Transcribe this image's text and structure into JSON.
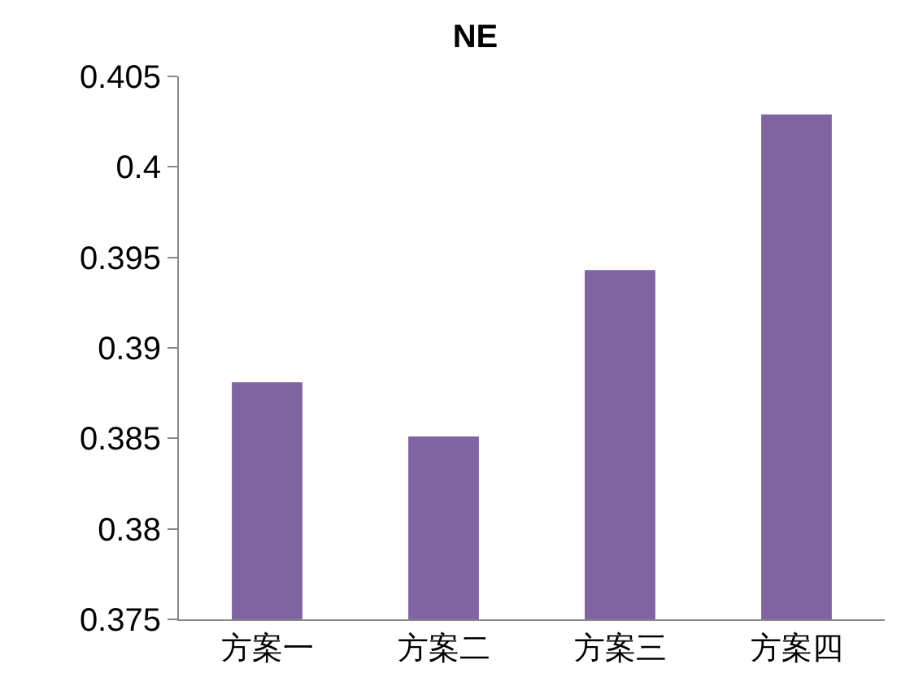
{
  "chart_data": {
    "type": "bar",
    "title": "NE",
    "categories": [
      "方案一",
      "方案二",
      "方案三",
      "方案四"
    ],
    "values": [
      0.3881,
      0.3851,
      0.3943,
      0.4029
    ],
    "color": "#8064a2",
    "ylim": [
      0.375,
      0.405
    ],
    "yticks": [
      0.375,
      0.38,
      0.385,
      0.39,
      0.395,
      0.4,
      0.405
    ],
    "grid": false
  }
}
